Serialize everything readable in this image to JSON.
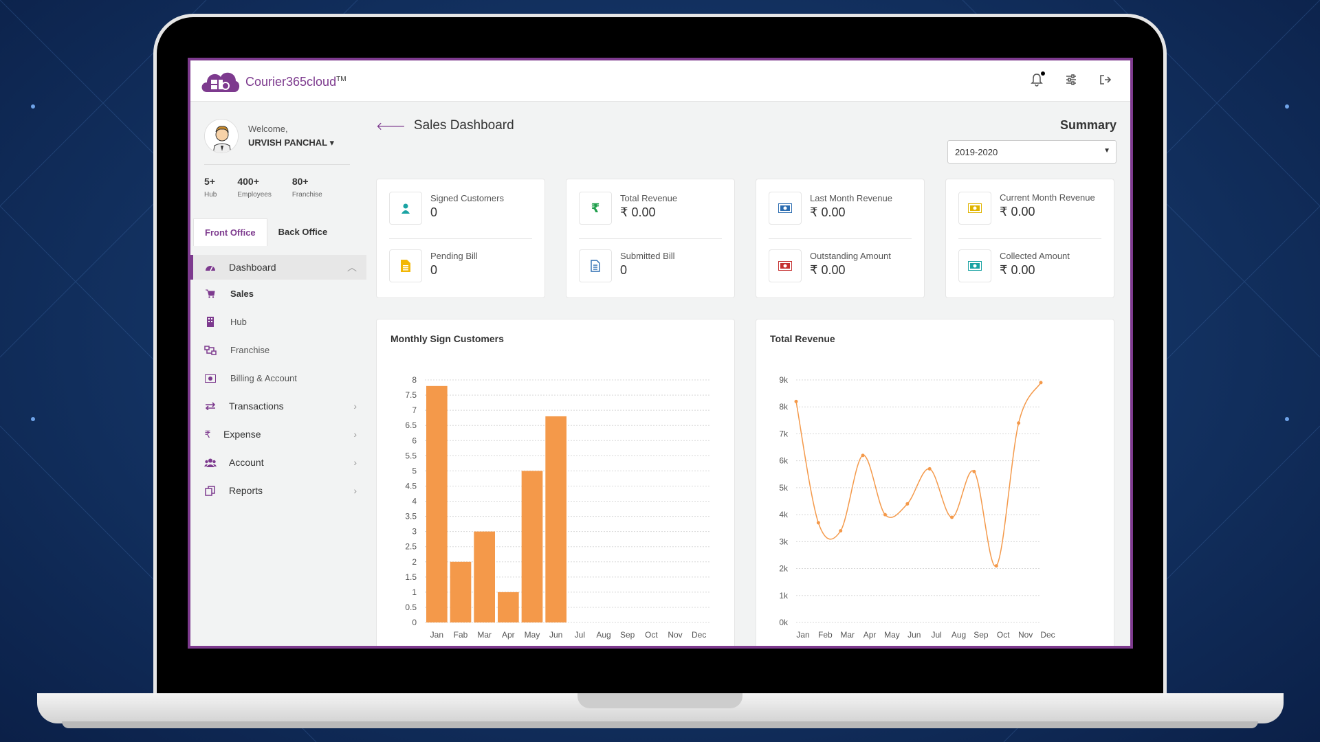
{
  "app": {
    "brand": "Courier365cloud",
    "trademark": "TM"
  },
  "user": {
    "welcome": "Welcome,",
    "name": "URVISH PANCHAL"
  },
  "stats": [
    {
      "value": "5+",
      "label": "Hub"
    },
    {
      "value": "400+",
      "label": "Employees"
    },
    {
      "value": "80+",
      "label": "Franchise"
    }
  ],
  "tabs": [
    {
      "label": "Front Office",
      "active": true
    },
    {
      "label": "Back Office",
      "active": false
    }
  ],
  "nav": {
    "dashboard": "Dashboard",
    "sub": [
      {
        "label": "Sales",
        "icon": "cart-icon"
      },
      {
        "label": "Hub",
        "icon": "building-icon"
      },
      {
        "label": "Franchise",
        "icon": "network-icon"
      },
      {
        "label": "Billing & Account",
        "icon": "money-icon"
      }
    ],
    "items": [
      {
        "label": "Transactions",
        "icon": "exchange-icon"
      },
      {
        "label": "Expense",
        "icon": "rupee-icon"
      },
      {
        "label": "Account",
        "icon": "users-icon"
      },
      {
        "label": "Reports",
        "icon": "copy-icon"
      }
    ]
  },
  "page": {
    "title": "Sales Dashboard",
    "summary": "Summary",
    "year": "2019-2020"
  },
  "cards": [
    {
      "top": {
        "label": "Signed Customers",
        "value": "0",
        "icon": "user-icon",
        "color": "#1aa3a3"
      },
      "bottom": {
        "label": "Pending Bill",
        "value": "0",
        "icon": "file-icon",
        "color": "#f2b705"
      }
    },
    {
      "top": {
        "label": "Total Revenue",
        "value": "₹ 0.00",
        "icon": "rupee-icon",
        "color": "#1e9e4a"
      },
      "bottom": {
        "label": "Submitted Bill",
        "value": "0",
        "icon": "document-icon",
        "color": "#2b6cb0"
      }
    },
    {
      "top": {
        "label": "Last Month Revenue",
        "value": "₹ 0.00",
        "icon": "money-icon",
        "color": "#2b6cb0"
      },
      "bottom": {
        "label": "Outstanding Amount",
        "value": "₹ 0.00",
        "icon": "money-icon",
        "color": "#c53030"
      }
    },
    {
      "top": {
        "label": "Current Month Revenue",
        "value": "₹ 0.00",
        "icon": "money-icon",
        "color": "#e0b400"
      },
      "bottom": {
        "label": "Collected Amount",
        "value": "₹ 0.00",
        "icon": "money-icon",
        "color": "#1aa3a3"
      }
    }
  ],
  "colors": {
    "accent": "#7d3a8e",
    "chart": "#f4994a"
  },
  "chart_data": [
    {
      "type": "bar",
      "title": "Monthly Sign Customers",
      "categories": [
        "Jan",
        "Fab",
        "Mar",
        "Apr",
        "May",
        "Jun",
        "Jul",
        "Aug",
        "Sep",
        "Oct",
        "Nov",
        "Dec"
      ],
      "values": [
        7.8,
        2,
        3,
        1,
        5,
        6.8,
        0,
        0,
        0,
        0,
        0,
        0
      ],
      "ylim": [
        0,
        8
      ],
      "yticks": [
        "0",
        "0.5",
        "1",
        "1.5",
        "2",
        "2.5",
        "3",
        "3.5",
        "4",
        "4.5",
        "5",
        "5.5",
        "6",
        "6.5",
        "7",
        "7.5",
        "8"
      ],
      "grid": true
    },
    {
      "type": "line",
      "title": "Total Revenue",
      "categories": [
        "Jan",
        "Feb",
        "Mar",
        "Apr",
        "May",
        "Jun",
        "Jul",
        "Aug",
        "Sep",
        "Oct",
        "Nov",
        "Dec"
      ],
      "values": [
        8200,
        3700,
        3400,
        6200,
        4000,
        4400,
        5700,
        3900,
        5600,
        2100,
        7400,
        8900
      ],
      "ylim": [
        0,
        9000
      ],
      "yticks": [
        "0k",
        "1k",
        "2k",
        "3k",
        "4k",
        "5k",
        "6k",
        "7k",
        "8k",
        "9k"
      ],
      "grid": true
    }
  ]
}
